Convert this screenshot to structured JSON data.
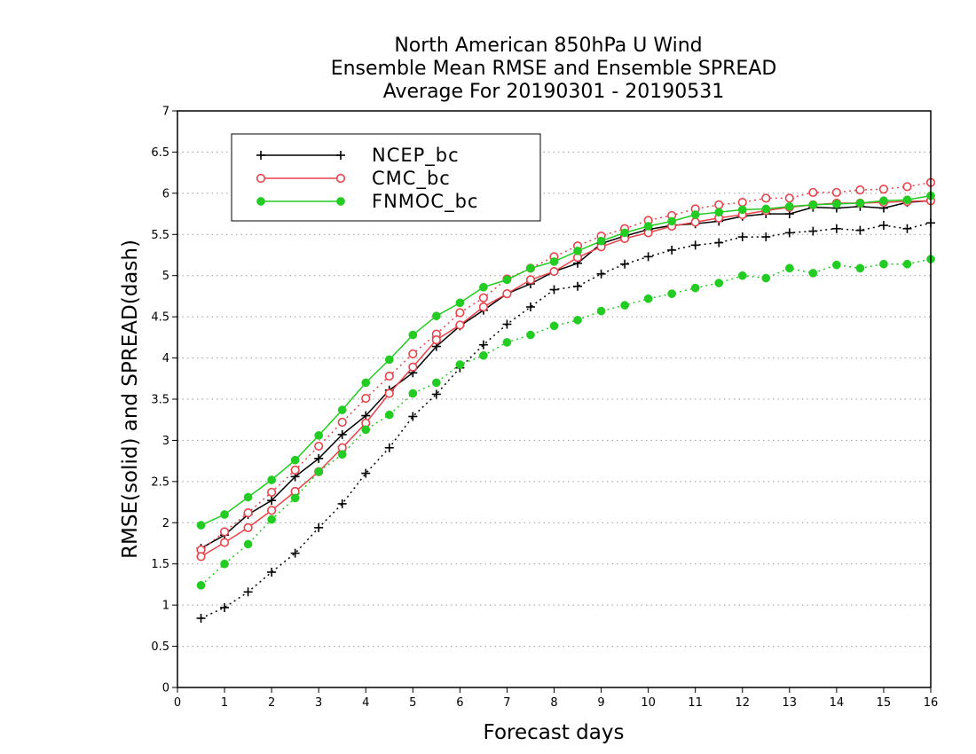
{
  "chart_data": {
    "type": "line",
    "title": [
      "North American 850hPa U Wind",
      "Ensemble Mean RMSE and Ensemble SPREAD",
      "Average For 20190301 - 20190531"
    ],
    "xlabel": "Forecast days",
    "ylabel": "RMSE(solid)  and  SPREAD(dash)",
    "xlim": [
      0,
      16
    ],
    "ylim": [
      0,
      7
    ],
    "x_ticks": [
      "0",
      "1",
      "2",
      "3",
      "4",
      "5",
      "6",
      "7",
      "8",
      "9",
      "10",
      "11",
      "12",
      "13",
      "14",
      "15",
      "16"
    ],
    "y_ticks": [
      "0",
      "0.5",
      "1",
      "1.5",
      "2",
      "2.5",
      "3",
      "3.5",
      "4",
      "4.5",
      "5",
      "5.5",
      "6",
      "6.5",
      "7"
    ],
    "grid": true,
    "legend_position": "top-left",
    "x": [
      0.5,
      1,
      1.5,
      2,
      2.5,
      3,
      3.5,
      4,
      4.5,
      5,
      5.5,
      6,
      6.5,
      7,
      7.5,
      8,
      8.5,
      9,
      9.5,
      10,
      10.5,
      11,
      11.5,
      12,
      12.5,
      13,
      13.5,
      14,
      14.5,
      15,
      15.5,
      16
    ],
    "series": [
      {
        "name": "NCEP_bc",
        "color": "#000000",
        "marker": "plus",
        "rmse": [
          1.69,
          1.85,
          2.1,
          2.27,
          2.56,
          2.78,
          3.07,
          3.3,
          3.61,
          3.82,
          4.14,
          4.39,
          4.58,
          4.78,
          4.9,
          5.05,
          5.15,
          5.39,
          5.48,
          5.56,
          5.61,
          5.63,
          5.66,
          5.72,
          5.75,
          5.75,
          5.83,
          5.82,
          5.84,
          5.82,
          5.89,
          5.91
        ],
        "spread": [
          0.84,
          0.97,
          1.16,
          1.4,
          1.63,
          1.94,
          2.23,
          2.6,
          2.91,
          3.29,
          3.56,
          3.88,
          4.16,
          4.41,
          4.62,
          4.83,
          4.87,
          5.02,
          5.14,
          5.23,
          5.31,
          5.37,
          5.4,
          5.47,
          5.47,
          5.52,
          5.54,
          5.57,
          5.55,
          5.61,
          5.57,
          5.64
        ]
      },
      {
        "name": "CMC_bc",
        "color": "#e8434a",
        "marker": "open-circle",
        "rmse": [
          1.59,
          1.76,
          1.94,
          2.15,
          2.38,
          2.62,
          2.91,
          3.21,
          3.57,
          3.89,
          4.22,
          4.4,
          4.62,
          4.78,
          4.95,
          5.05,
          5.22,
          5.35,
          5.45,
          5.52,
          5.6,
          5.65,
          5.7,
          5.74,
          5.79,
          5.83,
          5.86,
          5.88,
          5.88,
          5.89,
          5.9,
          5.91
        ],
        "spread": [
          1.67,
          1.89,
          2.12,
          2.37,
          2.64,
          2.93,
          3.22,
          3.51,
          3.78,
          4.05,
          4.29,
          4.55,
          4.73,
          4.96,
          5.09,
          5.23,
          5.36,
          5.48,
          5.57,
          5.67,
          5.73,
          5.81,
          5.86,
          5.89,
          5.94,
          5.94,
          6.01,
          6.01,
          6.04,
          6.05,
          6.08,
          6.13
        ]
      },
      {
        "name": "FNMOC_bc",
        "color": "#22cc22",
        "marker": "filled-circle",
        "rmse": [
          1.97,
          2.1,
          2.31,
          2.52,
          2.76,
          3.06,
          3.37,
          3.7,
          3.98,
          4.28,
          4.51,
          4.67,
          4.86,
          4.95,
          5.09,
          5.17,
          5.3,
          5.42,
          5.52,
          5.6,
          5.66,
          5.74,
          5.77,
          5.8,
          5.81,
          5.84,
          5.86,
          5.87,
          5.88,
          5.91,
          5.92,
          5.97
        ],
        "spread": [
          1.24,
          1.5,
          1.74,
          2.04,
          2.3,
          2.62,
          2.83,
          3.13,
          3.31,
          3.57,
          3.7,
          3.92,
          4.03,
          4.19,
          4.28,
          4.39,
          4.46,
          4.57,
          4.64,
          4.72,
          4.78,
          4.85,
          4.91,
          5.0,
          4.97,
          5.09,
          5.03,
          5.13,
          5.09,
          5.14,
          5.14,
          5.2
        ]
      }
    ]
  }
}
